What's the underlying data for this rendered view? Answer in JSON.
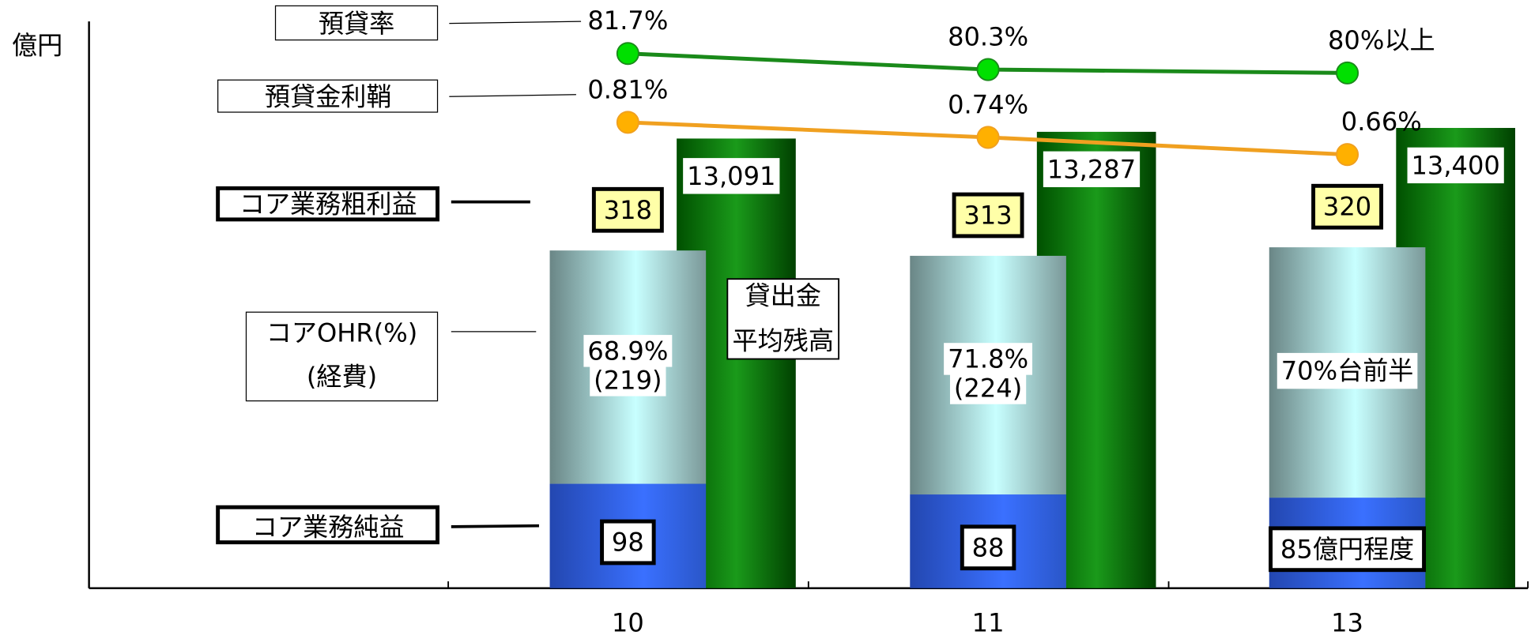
{
  "y_axis_label": "億円",
  "chart_data": {
    "type": "bar",
    "categories": [
      "10",
      "11",
      "13"
    ],
    "ylim": [
      0,
      532
    ],
    "y2lim": [
      0,
      16500
    ],
    "series": [
      {
        "name": "コア業務純益",
        "color": "#3366ff",
        "values": [
          98,
          88,
          85
        ],
        "value_labels": [
          "98",
          "88",
          "85億円程度"
        ]
      },
      {
        "name": "コアOHR(%)",
        "subtitle": "(経費)",
        "color": "#c8ffff",
        "values": [
          219,
          224,
          235
        ],
        "value_labels": [
          "(219)",
          "(224)",
          null
        ],
        "ohr": [
          68.9,
          71.8,
          null
        ],
        "ohr_labels": [
          "68.9%",
          "71.8%",
          "70%台前半"
        ]
      },
      {
        "name": "貸出金",
        "subtitle": "平均残高",
        "color": "#0a7a0a",
        "axis": "y2",
        "values": [
          13091,
          13287,
          13400
        ],
        "value_labels": [
          "13,091",
          "13,287",
          "13,400"
        ]
      }
    ],
    "gross_profit": {
      "name": "コア業務粗利益",
      "color": "#ffffa8",
      "values": [
        318,
        313,
        320
      ]
    },
    "lines": [
      {
        "name": "預貸率",
        "color": "#1a8a1a",
        "marker_color": "#00e000",
        "label_color": "#000000",
        "values": [
          81.7,
          80.3,
          80
        ],
        "value_labels": [
          "81.7%",
          "80.3%",
          "80%以上"
        ],
        "ylim": [
          35,
          84.5
        ]
      },
      {
        "name": "預貸金利鞘",
        "color": "#f0a020",
        "marker_color": "#ffb000",
        "label_color": "#ff8c00",
        "values": [
          0.81,
          0.74,
          0.66
        ],
        "value_labels": [
          "0.81%",
          "0.74%",
          "0.66%"
        ],
        "ylim": [
          -1.36,
          1.28
        ]
      }
    ]
  }
}
